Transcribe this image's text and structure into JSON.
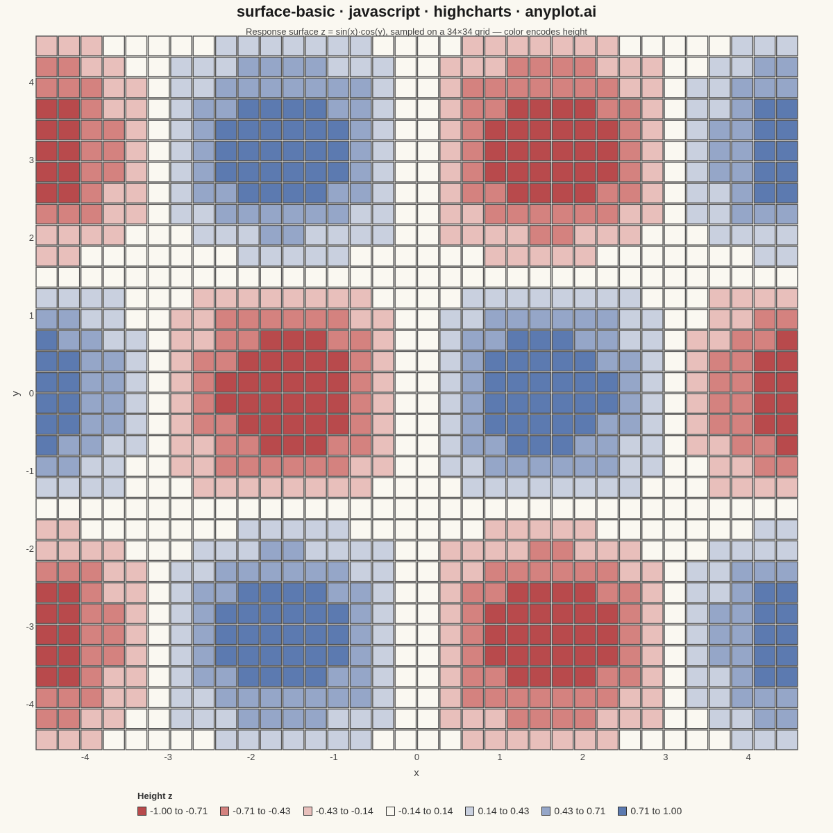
{
  "chart_data": {
    "type": "heatmap",
    "title": "surface-basic · javascript · highcharts · anyplot.ai",
    "subtitle": "Response surface z = sin(x)·cos(y), sampled on a 34×34 grid — color encodes height",
    "xlabel": "x",
    "ylabel": "y",
    "function": "z = sin(x)·cos(y)",
    "grid_size": 34,
    "xlim": [
      -4.6,
      4.6
    ],
    "ylim": [
      -4.6,
      4.6
    ],
    "x_ticks": [
      -4,
      -3,
      -2,
      -1,
      0,
      1,
      2,
      3,
      4
    ],
    "y_ticks": [
      4,
      3,
      2,
      1,
      0,
      -1,
      -2,
      -3,
      -4
    ],
    "legend_title": "Height z",
    "legend_placement": "bottom",
    "color_classes": [
      {
        "label": "-1.00 to -0.71",
        "from": -1.0,
        "to": -0.71,
        "color": "#B84A4C"
      },
      {
        "label": "-0.71 to -0.43",
        "from": -0.71,
        "to": -0.43,
        "color": "#D4827F"
      },
      {
        "label": "-0.43 to -0.14",
        "from": -0.43,
        "to": -0.14,
        "color": "#E8BFBB"
      },
      {
        "label": "-0.14 to 0.14",
        "from": -0.14,
        "to": 0.14,
        "color": "#FAF8F1"
      },
      {
        "label": "0.14 to 0.43",
        "from": 0.14,
        "to": 0.43,
        "color": "#C9D0DF"
      },
      {
        "label": "0.43 to 0.71",
        "from": 0.43,
        "to": 0.71,
        "color": "#95A6C8"
      },
      {
        "label": "0.71 to 1.00",
        "from": 0.71,
        "to": 1.0,
        "color": "#5C7AB0"
      }
    ]
  }
}
